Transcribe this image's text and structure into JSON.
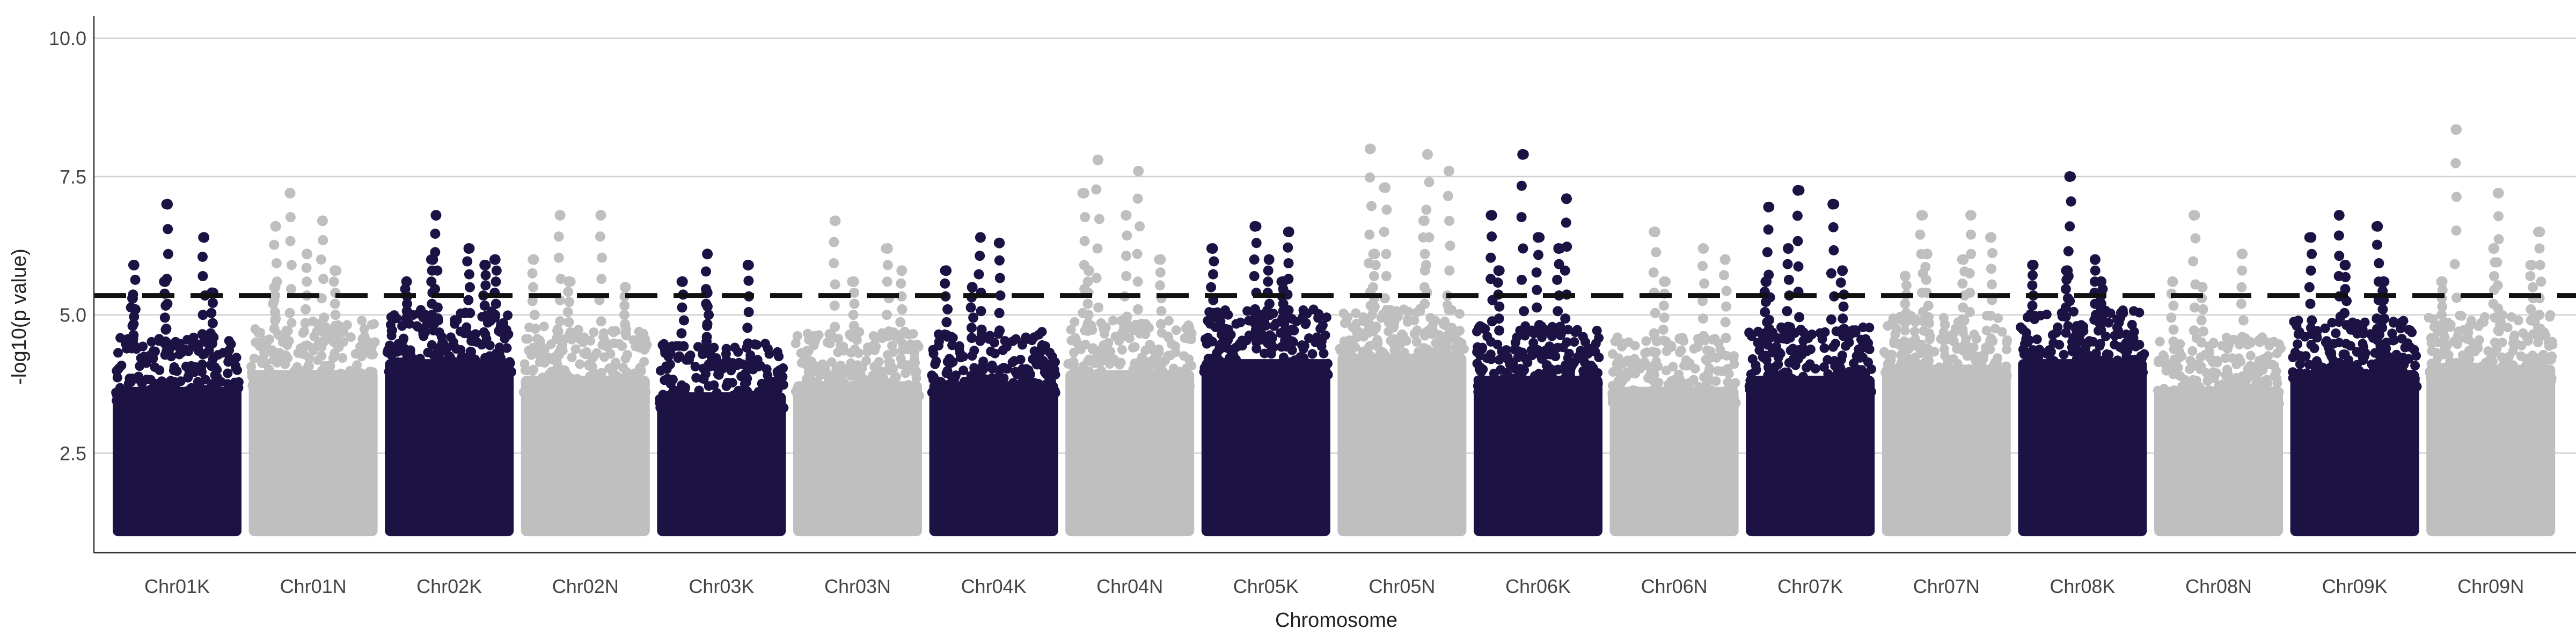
{
  "chart_data": {
    "type": "scatter",
    "title": "",
    "xlabel": "Chromosome",
    "ylabel": "-log10(p value)",
    "ylim": [
      0.7,
      10.4
    ],
    "yticks": [
      "2.5",
      "5.0",
      "7.5",
      "10.0"
    ],
    "y_tick_values": [
      2.5,
      5.0,
      7.5,
      10.0
    ],
    "grid": "horizontal major gridlines",
    "legend": "none",
    "threshold": {
      "y": 5.35,
      "style": "dashed",
      "color": "#111111"
    },
    "colors": {
      "dark": "#1d1244",
      "light": "#bfbfbf"
    },
    "chromosomes": [
      {
        "label": "Chr01K",
        "color": "dark",
        "base_top": 4.3,
        "peaks": [
          7.0,
          6.4,
          5.9,
          5.6,
          5.4,
          5.3
        ]
      },
      {
        "label": "Chr01N",
        "color": "light",
        "base_top": 4.6,
        "peaks": [
          7.2,
          6.7,
          6.6,
          6.1,
          5.8,
          5.5
        ]
      },
      {
        "label": "Chr02K",
        "color": "dark",
        "base_top": 4.8,
        "peaks": [
          6.8,
          6.2,
          6.0,
          6.0,
          5.9,
          5.6
        ]
      },
      {
        "label": "Chr02N",
        "color": "light",
        "base_top": 4.5,
        "peaks": [
          6.8,
          6.8,
          6.0,
          5.6,
          5.5
        ]
      },
      {
        "label": "Chr03K",
        "color": "dark",
        "base_top": 4.2,
        "peaks": [
          6.1,
          5.9,
          5.6,
          5.4
        ]
      },
      {
        "label": "Chr03N",
        "color": "light",
        "base_top": 4.4,
        "peaks": [
          6.7,
          6.2,
          5.8,
          5.6
        ]
      },
      {
        "label": "Chr04K",
        "color": "dark",
        "base_top": 4.4,
        "peaks": [
          6.4,
          6.3,
          5.8,
          5.5
        ]
      },
      {
        "label": "Chr04N",
        "color": "light",
        "base_top": 4.6,
        "peaks": [
          7.8,
          7.6,
          7.2,
          6.8,
          6.0,
          5.8
        ]
      },
      {
        "label": "Chr05K",
        "color": "dark",
        "base_top": 4.8,
        "peaks": [
          6.6,
          6.5,
          6.2,
          6.0,
          5.6
        ]
      },
      {
        "label": "Chr05N",
        "color": "light",
        "base_top": 4.9,
        "peaks": [
          8.0,
          7.9,
          7.6,
          7.3,
          6.7,
          6.1
        ]
      },
      {
        "label": "Chr06K",
        "color": "dark",
        "base_top": 4.5,
        "peaks": [
          7.9,
          7.1,
          6.8,
          6.4,
          6.2,
          5.8
        ]
      },
      {
        "label": "Chr06N",
        "color": "light",
        "base_top": 4.3,
        "peaks": [
          6.5,
          6.2,
          6.0,
          5.6
        ]
      },
      {
        "label": "Chr07K",
        "color": "dark",
        "base_top": 4.5,
        "peaks": [
          7.25,
          7.0,
          6.95,
          6.2,
          5.8,
          5.6
        ]
      },
      {
        "label": "Chr07N",
        "color": "light",
        "base_top": 4.7,
        "peaks": [
          6.8,
          6.8,
          6.4,
          6.1,
          6.0,
          5.7
        ]
      },
      {
        "label": "Chr08K",
        "color": "dark",
        "base_top": 4.8,
        "peaks": [
          7.5,
          6.0,
          5.9,
          5.8,
          5.6
        ]
      },
      {
        "label": "Chr08N",
        "color": "light",
        "base_top": 4.3,
        "peaks": [
          6.8,
          6.1,
          5.6,
          5.5
        ]
      },
      {
        "label": "Chr09K",
        "color": "dark",
        "base_top": 4.6,
        "peaks": [
          6.8,
          6.6,
          6.4,
          5.9,
          5.6
        ]
      },
      {
        "label": "Chr09N",
        "color": "light",
        "base_top": 4.7,
        "peaks": [
          8.35,
          7.2,
          6.5,
          6.2,
          5.9,
          5.6
        ]
      }
    ]
  }
}
